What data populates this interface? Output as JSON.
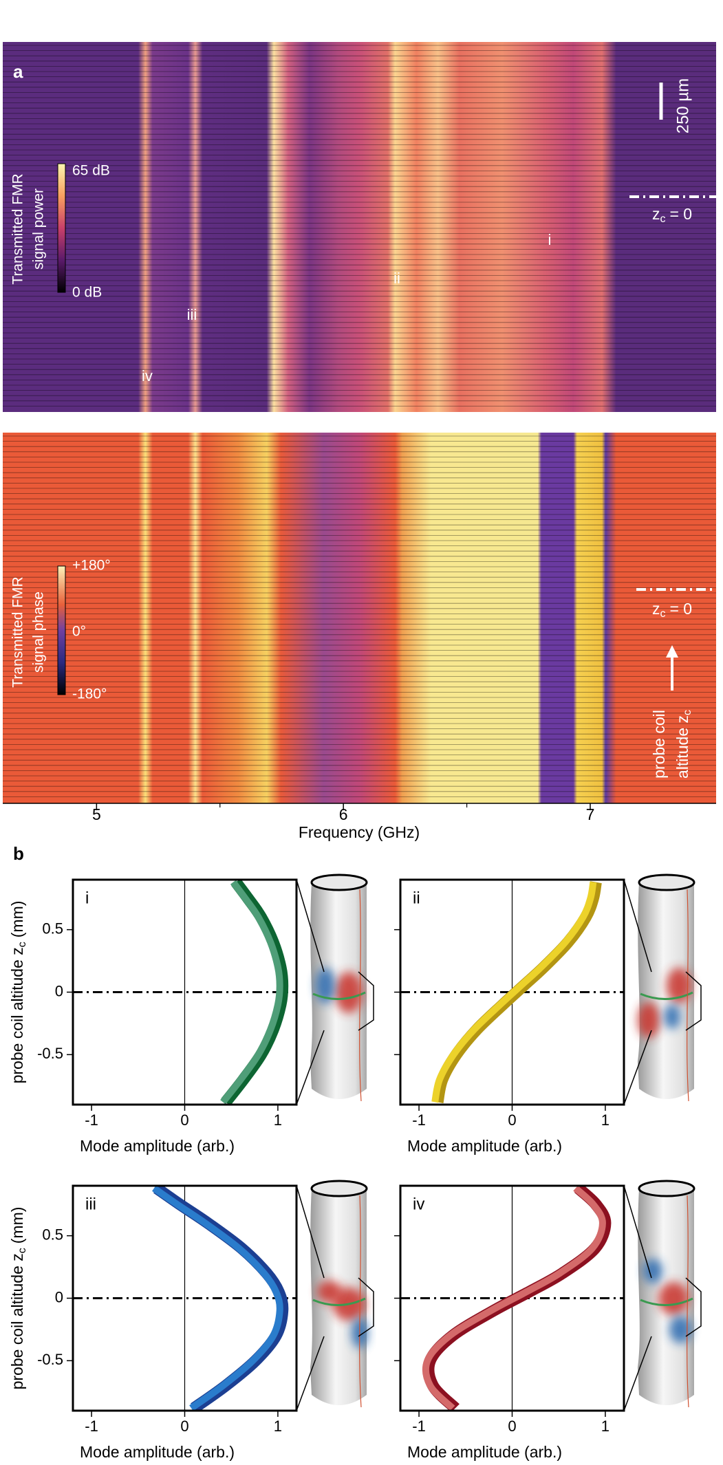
{
  "chart_data": [
    {
      "type": "heatmap",
      "panel_label": "a",
      "colorbar_title": [
        "Transmitted FMR",
        "signal power"
      ],
      "colorbar_labels": [
        "65 dB",
        "0 dB"
      ],
      "mode_labels": [
        "i",
        "ii",
        "iii",
        "iv"
      ],
      "scale_bar": "250 µm",
      "reference_label": [
        "z",
        "c",
        "= 0"
      ]
    },
    {
      "type": "heatmap",
      "colorbar_title": [
        "Transmitted FMR",
        "signal phase"
      ],
      "colorbar_labels": [
        "+180°",
        "0°",
        "-180°"
      ],
      "reference_label": [
        "z",
        "c",
        "= 0"
      ],
      "ylabel": [
        "probe coil",
        "altitude z",
        "c"
      ],
      "xlabel": "Frequency (GHz)",
      "xlim": [
        4.62,
        7.51
      ],
      "xticks": [
        5,
        6,
        7
      ],
      "xminorticks": [
        5.5,
        6.5
      ]
    },
    {
      "type": "line",
      "orientation": "horizontal",
      "panel_label": "i",
      "ylabel": [
        "probe coil altitude z",
        "c",
        "(mm)"
      ],
      "xlabel": "Mode amplitude (arb.)",
      "xlim": [
        -1.2,
        1.2
      ],
      "xticks": [
        -1,
        0,
        1
      ],
      "ylim": [
        -0.9,
        0.9
      ],
      "yticks": [
        -0.5,
        0,
        0.5
      ],
      "show_ytick_labels": true,
      "zero_line": 0,
      "reference_line": 0,
      "y": [
        -0.88,
        -0.7,
        -0.5,
        -0.3,
        -0.1,
        0.05,
        0.2,
        0.4,
        0.6,
        0.75,
        0.88
      ],
      "series": [
        {
          "color": "#4f9e78",
          "edge_color": "#0d6532",
          "values": [
            0.44,
            0.63,
            0.82,
            0.95,
            1.03,
            1.05,
            1.03,
            0.95,
            0.82,
            0.68,
            0.55
          ]
        }
      ]
    },
    {
      "type": "line",
      "orientation": "horizontal",
      "panel_label": "ii",
      "xlabel": "Mode amplitude (arb.)",
      "xlim": [
        -1.2,
        1.2
      ],
      "xticks": [
        -1,
        0,
        1
      ],
      "ylim": [
        -0.9,
        0.9
      ],
      "yticks": [
        -0.5,
        0,
        0.5
      ],
      "show_ytick_labels": false,
      "zero_line": 0,
      "reference_line": 0,
      "y": [
        -0.88,
        -0.7,
        -0.5,
        -0.3,
        -0.1,
        0.05,
        0.2,
        0.4,
        0.6,
        0.75,
        0.88
      ],
      "series": [
        {
          "color": "#ecd22a",
          "edge_color": "#b39512",
          "values": [
            -0.8,
            -0.75,
            -0.6,
            -0.38,
            -0.1,
            0.12,
            0.34,
            0.6,
            0.79,
            0.87,
            0.9
          ]
        }
      ]
    },
    {
      "type": "line",
      "orientation": "horizontal",
      "panel_label": "iii",
      "ylabel": [
        "probe coil altitude z",
        "c",
        "(mm)"
      ],
      "xlabel": "Mode amplitude (arb.)",
      "xlim": [
        -1.2,
        1.2
      ],
      "xticks": [
        -1,
        0,
        1
      ],
      "ylim": [
        -0.9,
        0.9
      ],
      "yticks": [
        -0.5,
        0,
        0.5
      ],
      "show_ytick_labels": true,
      "zero_line": 0,
      "reference_line": 0,
      "y": [
        -0.88,
        -0.7,
        -0.5,
        -0.3,
        -0.1,
        0.05,
        0.2,
        0.4,
        0.6,
        0.75,
        0.88
      ],
      "series": [
        {
          "color": "#2a7ccc",
          "edge_color": "#1c3f92",
          "values": [
            0.1,
            0.44,
            0.76,
            0.98,
            1.05,
            1.01,
            0.88,
            0.61,
            0.25,
            -0.05,
            -0.3
          ]
        }
      ]
    },
    {
      "type": "line",
      "orientation": "horizontal",
      "panel_label": "iv",
      "xlabel": "Mode amplitude (arb.)",
      "xlim": [
        -1.2,
        1.2
      ],
      "xticks": [
        -1,
        0,
        1
      ],
      "ylim": [
        -0.9,
        0.9
      ],
      "yticks": [
        -0.5,
        0,
        0.5
      ],
      "show_ytick_labels": false,
      "zero_line": 0,
      "reference_line": 0,
      "y": [
        -0.88,
        -0.7,
        -0.5,
        -0.3,
        -0.1,
        0.05,
        0.2,
        0.4,
        0.6,
        0.75,
        0.88
      ],
      "series": [
        {
          "color": "#d46a6a",
          "edge_color": "#8c1020",
          "values": [
            -0.61,
            -0.85,
            -0.88,
            -0.64,
            -0.2,
            0.18,
            0.54,
            0.89,
            1.0,
            0.9,
            0.71
          ]
        }
      ]
    }
  ]
}
